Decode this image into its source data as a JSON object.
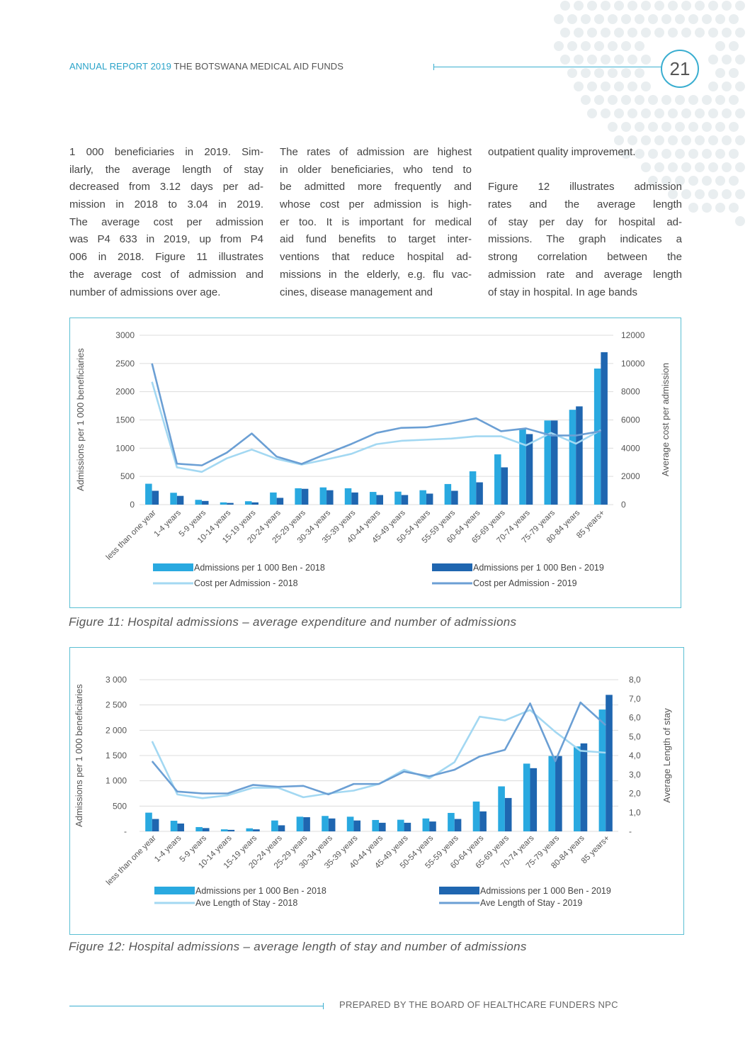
{
  "header": {
    "accent": "ANNUAL REPORT 2019",
    "title": "THE BOTSWANA MEDICAL AID FUNDS",
    "page_number": "21"
  },
  "columns": [
    [
      "1 000 beneficiaries in 2019. Sim-",
      "ilarly, the average length of stay",
      "decreased from 3.12 days per ad-",
      "mission in 2018 to 3.04 in 2019.",
      "The average cost per admission",
      "was P4 633 in 2019, up from P4",
      "006 in 2018. Figure 11 illustrates",
      "the average cost of admission and",
      "number of admissions over age."
    ],
    [
      "The rates of admission are highest",
      "in older beneficiaries, who tend to",
      "be admitted more frequently and",
      "whose cost per admission is high-",
      "er too. It is important for medical",
      "aid fund benefits to target inter-",
      "ventions that reduce hospital ad-",
      "missions in the elderly, e.g. flu vac-",
      "cines, disease management and"
    ],
    [
      "outpatient quality improvement.",
      "",
      "Figure 12 illustrates admission",
      "rates and the average length",
      "of stay per day for hospital ad-",
      "missions. The graph indicates a",
      "strong correlation between the",
      "admission rate and average length",
      "of stay in hospital. In age bands"
    ]
  ],
  "colors": {
    "accent": "#2aa3c9",
    "bar2018": "#29a9e0",
    "bar2019": "#1f66b0",
    "line2018": "#a3d8f2",
    "line2019": "#6b9fd4",
    "border": "#5bbfd3"
  },
  "chart_data": [
    {
      "type": "bar+line",
      "caption": "Figure 11: Hospital admissions – average expenditure and number of admissions",
      "ylabel": "Admissions per 1 000 beneficiaries",
      "y2label": "Average cost per admission",
      "ylim": [
        0,
        3000
      ],
      "y2lim": [
        0,
        12000
      ],
      "yticks": [
        "0",
        "500",
        "1000",
        "1500",
        "2000",
        "2500",
        "3000"
      ],
      "y2ticks": [
        "0",
        "2000",
        "4000",
        "6000",
        "8000",
        "10000",
        "12000"
      ],
      "grid": true,
      "legend": "bottom",
      "categories": [
        "less than one year",
        "1-4 years",
        "5-9 years",
        "10-14 years",
        "15-19 years",
        "20-24 years",
        "25-29 years",
        "30-34 years",
        "35-39 years",
        "40-44 years",
        "45-49 years",
        "50-54 years",
        "55-59 years",
        "60-64 years",
        "65-69 years",
        "70-74 years",
        "75-79 years",
        "80-84 years",
        "85 years+"
      ],
      "bars": [
        {
          "name": "Admissions per 1 000 Ben - 2018",
          "values": [
            370,
            210,
            85,
            40,
            60,
            215,
            290,
            305,
            290,
            225,
            230,
            255,
            365,
            590,
            890,
            1340,
            1490,
            1680,
            2410
          ]
        },
        {
          "name": "Admissions per 1 000 Ben - 2019",
          "values": [
            245,
            155,
            65,
            30,
            40,
            120,
            280,
            255,
            215,
            170,
            170,
            195,
            245,
            395,
            660,
            1250,
            1490,
            1740,
            2700
          ]
        }
      ],
      "lines": [
        {
          "name": "Cost per Admission - 2018",
          "axis": "right",
          "values": [
            8700,
            2640,
            2320,
            3280,
            3900,
            3240,
            2840,
            3200,
            3600,
            4280,
            4520,
            4600,
            4680,
            4840,
            4840,
            4200,
            5080,
            4320,
            5280
          ]
        },
        {
          "name": "Cost per Admission - 2019",
          "axis": "right",
          "values": [
            10000,
            2900,
            2780,
            3680,
            5040,
            3400,
            2880,
            3600,
            4300,
            5080,
            5440,
            5480,
            5760,
            6120,
            5200,
            5400,
            4900,
            4900,
            5200
          ]
        }
      ]
    },
    {
      "type": "bar+line",
      "caption": "Figure 12: Hospital admissions – average length of stay and number of admissions",
      "ylabel": "Admissions per 1 000 beneficiaries",
      "y2label": "Average Length of stay",
      "ylim": [
        0,
        3000
      ],
      "y2lim": [
        0,
        8
      ],
      "yticks": [
        "-",
        "500",
        "1 000",
        "1 500",
        "2 000",
        "2 500",
        "3 000"
      ],
      "y2ticks": [
        "-",
        "1,0",
        "2,0",
        "3,0",
        "4,0",
        "5,0",
        "6,0",
        "7,0",
        "8,0"
      ],
      "grid": true,
      "legend": "bottom",
      "categories": [
        "less than one year",
        "1-4 years",
        "5-9 years",
        "10-14 years",
        "15-19 years",
        "20-24 years",
        "25-29 years",
        "30-34 years",
        "35-39 years",
        "40-44 years",
        "45-49 years",
        "50-54 years",
        "55-59 years",
        "60-64 years",
        "65-69 years",
        "70-74 years",
        "75-79 years",
        "80-84 years",
        "85 years+"
      ],
      "bars": [
        {
          "name": "Admissions per 1 000 Ben - 2018",
          "values": [
            370,
            210,
            85,
            40,
            60,
            215,
            290,
            305,
            290,
            225,
            230,
            255,
            365,
            590,
            890,
            1340,
            1490,
            1680,
            2410
          ]
        },
        {
          "name": "Admissions per 1 000 Ben - 2019",
          "values": [
            245,
            155,
            65,
            30,
            40,
            120,
            280,
            255,
            215,
            170,
            170,
            195,
            245,
            395,
            660,
            1250,
            1490,
            1740,
            2700
          ]
        }
      ],
      "lines": [
        {
          "name": "Ave Length of Stay - 2018",
          "axis": "right",
          "values": [
            4.75,
            1.95,
            1.75,
            1.9,
            2.3,
            2.3,
            1.8,
            2.0,
            2.15,
            2.5,
            3.25,
            2.8,
            3.65,
            6.05,
            5.85,
            6.4,
            5.25,
            4.25,
            4.15
          ]
        },
        {
          "name": "Ave Length of Stay - 2019",
          "axis": "right",
          "values": [
            3.7,
            2.1,
            2.0,
            2.0,
            2.45,
            2.35,
            2.4,
            1.95,
            2.5,
            2.5,
            3.15,
            2.9,
            3.25,
            3.95,
            4.3,
            6.75,
            3.7,
            6.8,
            5.6
          ]
        }
      ]
    }
  ],
  "footer": "PREPARED BY THE BOARD OF HEALTHCARE FUNDERS NPC"
}
